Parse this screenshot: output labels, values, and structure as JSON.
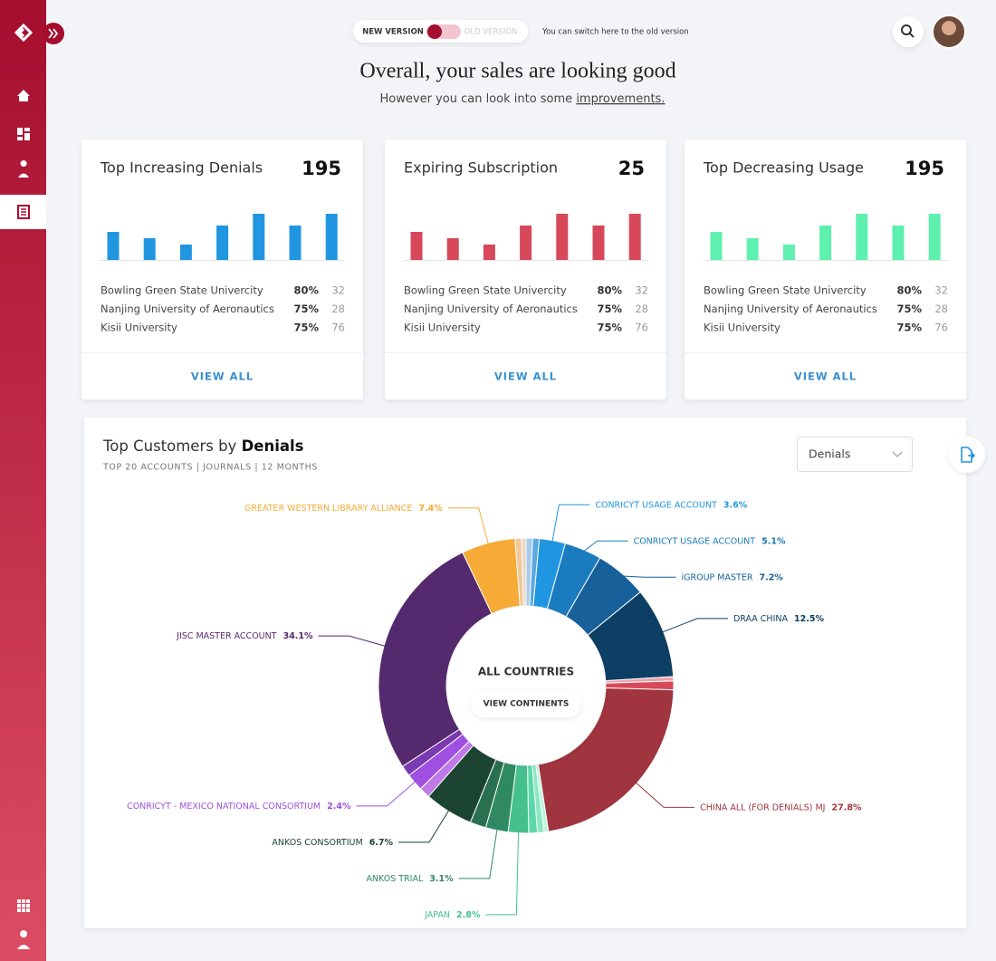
{
  "header": {
    "toggle_on": "NEW VERSION",
    "toggle_off": "OLD VERSION",
    "switch_hint": "You can switch here to the old version",
    "title": "Overall, your sales are looking good",
    "subtitle": "However you can look into some ",
    "subtitle_link": "improvements."
  },
  "cards": [
    {
      "title": "Top Increasing Denials",
      "total": 195,
      "rows": [
        [
          "Bowling Green State Univercity",
          "80%",
          32
        ],
        [
          "Nanjing University of Aeronautics",
          "75%",
          28
        ],
        [
          "Kisii University",
          "75%",
          76
        ]
      ],
      "action": "VIEW ALL"
    },
    {
      "title": "Expiring Subscription",
      "total": 25,
      "rows": [
        [
          "Bowling Green State Univercity",
          "80%",
          32
        ],
        [
          "Nanjing University of Aeronautics",
          "75%",
          28
        ],
        [
          "Kisii University",
          "75%",
          76
        ]
      ],
      "action": "VIEW ALL"
    },
    {
      "title": "Top Decreasing Usage",
      "total": 195,
      "rows": [
        [
          "Bowling Green State Univercity",
          "80%",
          32
        ],
        [
          "Nanjing University of Aeronautics",
          "75%",
          28
        ],
        [
          "Kisii University",
          "75%",
          76
        ]
      ],
      "action": "VIEW ALL"
    }
  ],
  "panel": {
    "title": "Top Customers by ",
    "title_bold": "Denials",
    "subtitle": "TOP 20 ACCOUNTS | JOURNALS | 12 MONTHS",
    "dropdown": "Denials",
    "center_title": "ALL COUNTRIES",
    "center_button": "VIEW CONTINENTS"
  },
  "chart_data": [
    {
      "type": "bar",
      "categories": [
        null,
        null,
        null,
        null,
        null,
        null,
        null
      ],
      "values": [
        31,
        24,
        17,
        38,
        51,
        38,
        51
      ],
      "color": "#2196e0"
    },
    {
      "type": "bar",
      "categories": [
        null,
        null,
        null,
        null,
        null,
        null,
        null
      ],
      "values": [
        31,
        24,
        17,
        38,
        51,
        38,
        51
      ],
      "color": "#d6485a"
    },
    {
      "type": "bar",
      "categories": [
        null,
        null,
        null,
        null,
        null,
        null,
        null
      ],
      "values": [
        31,
        24,
        17,
        38,
        51,
        38,
        51
      ],
      "color": "#5ef0ae"
    },
    {
      "type": "pie",
      "categories": [
        null,
        null,
        "CONRICYT USAGE ACCOUNT",
        "CONRICYT USAGE ACCOUNT",
        "iGROUP MASTER",
        "DRAA CHINA",
        null,
        null,
        "CHINA ALL (FOR DENIALS) MJ",
        null,
        null,
        null,
        "JAPAN",
        "ANKOS TRIAL",
        null,
        "ANKOS CONSORTIUM",
        null,
        "CONRICYT - MEXICO NATIONAL CONSORTIUM",
        null,
        "JISC MASTER ACCOUNT",
        "GREATER WESTERN LIBRARY ALLIANCE",
        null,
        null
      ],
      "values": [
        0.9,
        0.9,
        3.6,
        5.1,
        7.2,
        12.5,
        0.6,
        1.2,
        27.8,
        0.6,
        0.9,
        1.2,
        2.8,
        3.1,
        2.2,
        6.7,
        1.5,
        2.4,
        1.5,
        34.1,
        7.4,
        0.9,
        0.6
      ],
      "value_labels": [
        null,
        null,
        "3.6%",
        "5.1%",
        "7.2%",
        "12.5%",
        null,
        null,
        "27.8%",
        null,
        null,
        null,
        "2.8%",
        "3.1%",
        null,
        "6.7%",
        null,
        "2.4%",
        null,
        "34.1%",
        "7.4%",
        null,
        null
      ],
      "colors": [
        "#a9cbea",
        "#5aa9e0",
        "#2196e0",
        "#1a7bbf",
        "#17609a",
        "#0d3f64",
        "#f0a0a8",
        "#d6485a",
        "#a0343f",
        "#c0f4dc",
        "#8ae8c0",
        "#5cd8a8",
        "#45c08e",
        "#2f8a63",
        "#2a7050",
        "#1c4432",
        "#c07ae8",
        "#a050e0",
        "#7a3ab0",
        "#55296e",
        "#f5ab35",
        "#f2c89a",
        "#e4d6c6"
      ]
    }
  ]
}
